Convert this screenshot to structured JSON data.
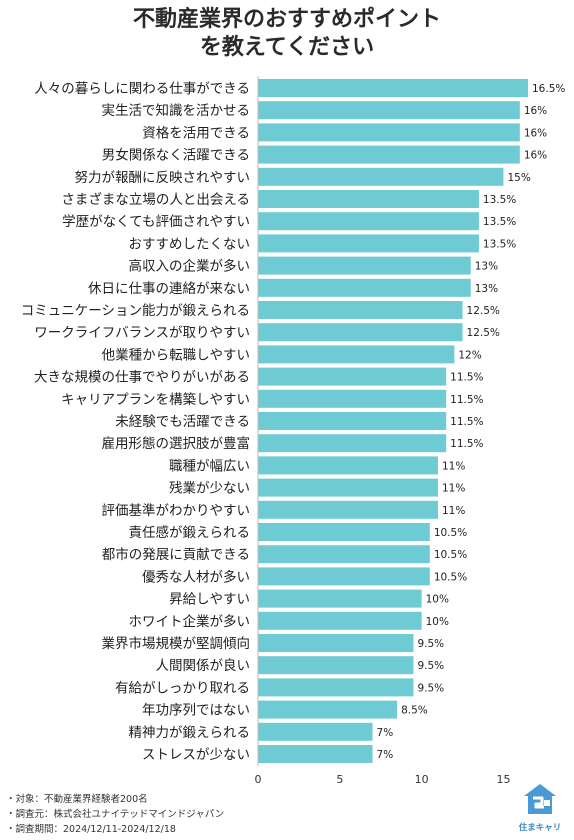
{
  "title": {
    "line1": "不動産業界のおすすめポイント",
    "line2": "を教えてください"
  },
  "chart_data": {
    "type": "bar",
    "orientation": "horizontal",
    "categories": [
      "人々の暮らしに関わる仕事ができる",
      "実生活で知識を活かせる",
      "資格を活用できる",
      "男女関係なく活躍できる",
      "努力が報酬に反映されやすい",
      "さまざまな立場の人と出会える",
      "学歴がなくても評価されやすい",
      "おすすめしたくない",
      "高収入の企業が多い",
      "休日に仕事の連絡が来ない",
      "コミュニケーション能力が鍛えられる",
      "ワークライフバランスが取りやすい",
      "他業種から転職しやすい",
      "大きな規模の仕事でやりがいがある",
      "キャリアプランを構築しやすい",
      "未経験でも活躍できる",
      "雇用形態の選択肢が豊富",
      "職種が幅広い",
      "残業が少ない",
      "評価基準がわかりやすい",
      "責任感が鍛えられる",
      "都市の発展に貢献できる",
      "優秀な人材が多い",
      "昇給しやすい",
      "ホワイト企業が多い",
      "業界市場規模が堅調傾向",
      "人間関係が良い",
      "有給がしっかり取れる",
      "年功序列ではない",
      "精神力が鍛えられる",
      "ストレスが少ない"
    ],
    "values": [
      16.5,
      16,
      16,
      16,
      15,
      13.5,
      13.5,
      13.5,
      13,
      13,
      12.5,
      12.5,
      12,
      11.5,
      11.5,
      11.5,
      11.5,
      11,
      11,
      11,
      10.5,
      10.5,
      10.5,
      10,
      10,
      9.5,
      9.5,
      9.5,
      8.5,
      7,
      7
    ],
    "value_labels": [
      "16.5%",
      "16%",
      "16%",
      "16%",
      "15%",
      "13.5%",
      "13.5%",
      "13.5%",
      "13%",
      "13%",
      "12.5%",
      "12.5%",
      "12%",
      "11.5%",
      "11.5%",
      "11.5%",
      "11.5%",
      "11%",
      "11%",
      "11%",
      "10.5%",
      "10.5%",
      "10.5%",
      "10%",
      "10%",
      "9.5%",
      "9.5%",
      "9.5%",
      "8.5%",
      "7%",
      "7%"
    ],
    "xlim": [
      0,
      16.5
    ],
    "xticks": [
      0,
      5,
      10,
      15
    ],
    "xtick_labels": [
      "0",
      "5",
      "10",
      "15"
    ],
    "grid": false,
    "bar_color": "#6ecbd4",
    "title": "",
    "xlabel": "",
    "ylabel": ""
  },
  "footnotes": [
    "・対象：不動産業界経験者200名",
    "・調査元：株式会社ユナイテッドマインドジャパン",
    "・調査期間：2024/12/11-2024/12/18"
  ],
  "logo": {
    "text": "住まキャリ",
    "color": "#3b88c8"
  }
}
